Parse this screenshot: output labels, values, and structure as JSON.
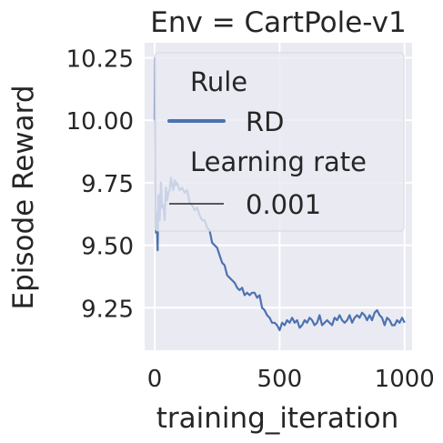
{
  "chart_data": {
    "type": "line",
    "title": "Env = CartPole-v1",
    "xlabel": "training_iteration",
    "ylabel": "Episode Reward",
    "xlim": [
      -40,
      1030
    ],
    "ylim": [
      9.08,
      10.31
    ],
    "xticks": [
      0,
      500,
      1000
    ],
    "xtick_labels": [
      "0",
      "500",
      "1000"
    ],
    "yticks": [
      9.25,
      9.5,
      9.75,
      10.0,
      10.25
    ],
    "ytick_labels": [
      "9.25",
      "9.50",
      "9.75",
      "10.00",
      "10.25"
    ],
    "grid": true,
    "legend": {
      "placement": "top-right",
      "title_color": "Rule",
      "color_entries": [
        {
          "label": "RD",
          "color": "#4c72b0"
        }
      ],
      "title_size": "Learning rate",
      "size_entries": [
        {
          "label": "0.001",
          "color": "#262626"
        }
      ]
    },
    "series": [
      {
        "name": "RD",
        "color": "#4c72b0",
        "x": [
          0,
          1,
          2,
          3,
          5,
          8,
          12,
          15,
          20,
          25,
          30,
          35,
          40,
          45,
          50,
          55,
          60,
          65,
          70,
          75,
          80,
          85,
          90,
          100,
          110,
          120,
          130,
          140,
          150,
          160,
          170,
          180,
          190,
          200,
          210,
          220,
          230,
          240,
          250,
          260,
          270,
          280,
          290,
          300,
          310,
          320,
          330,
          340,
          350,
          360,
          370,
          380,
          390,
          400,
          410,
          420,
          430,
          440,
          450,
          460,
          470,
          480,
          490,
          500,
          510,
          520,
          530,
          540,
          550,
          560,
          570,
          580,
          590,
          600,
          610,
          620,
          630,
          640,
          650,
          660,
          670,
          680,
          690,
          700,
          710,
          720,
          730,
          740,
          750,
          760,
          770,
          780,
          790,
          800,
          810,
          820,
          830,
          840,
          850,
          860,
          870,
          880,
          890,
          900,
          910,
          920,
          930,
          940,
          950,
          960,
          970,
          980,
          990,
          1000
        ],
        "y": [
          10.0,
          10.25,
          10.0,
          9.6,
          9.55,
          9.63,
          9.48,
          9.7,
          9.6,
          9.75,
          9.65,
          9.66,
          9.6,
          9.73,
          9.68,
          9.71,
          9.72,
          9.77,
          9.74,
          9.72,
          9.76,
          9.74,
          9.75,
          9.72,
          9.73,
          9.71,
          9.72,
          9.67,
          9.66,
          9.64,
          9.65,
          9.62,
          9.6,
          9.6,
          9.57,
          9.56,
          9.51,
          9.5,
          9.49,
          9.46,
          9.43,
          9.42,
          9.38,
          9.37,
          9.36,
          9.35,
          9.33,
          9.32,
          9.33,
          9.3,
          9.31,
          9.3,
          9.31,
          9.31,
          9.29,
          9.3,
          9.25,
          9.24,
          9.22,
          9.21,
          9.19,
          9.19,
          9.18,
          9.16,
          9.19,
          9.18,
          9.2,
          9.19,
          9.21,
          9.19,
          9.2,
          9.17,
          9.18,
          9.2,
          9.19,
          9.21,
          9.2,
          9.18,
          9.19,
          9.22,
          9.18,
          9.19,
          9.2,
          9.19,
          9.18,
          9.21,
          9.2,
          9.22,
          9.2,
          9.19,
          9.2,
          9.22,
          9.19,
          9.21,
          9.22,
          9.21,
          9.23,
          9.22,
          9.2,
          9.22,
          9.2,
          9.23,
          9.24,
          9.22,
          9.21,
          9.18,
          9.21,
          9.2,
          9.18,
          9.18,
          9.2,
          9.19,
          9.21,
          9.19
        ]
      }
    ]
  }
}
